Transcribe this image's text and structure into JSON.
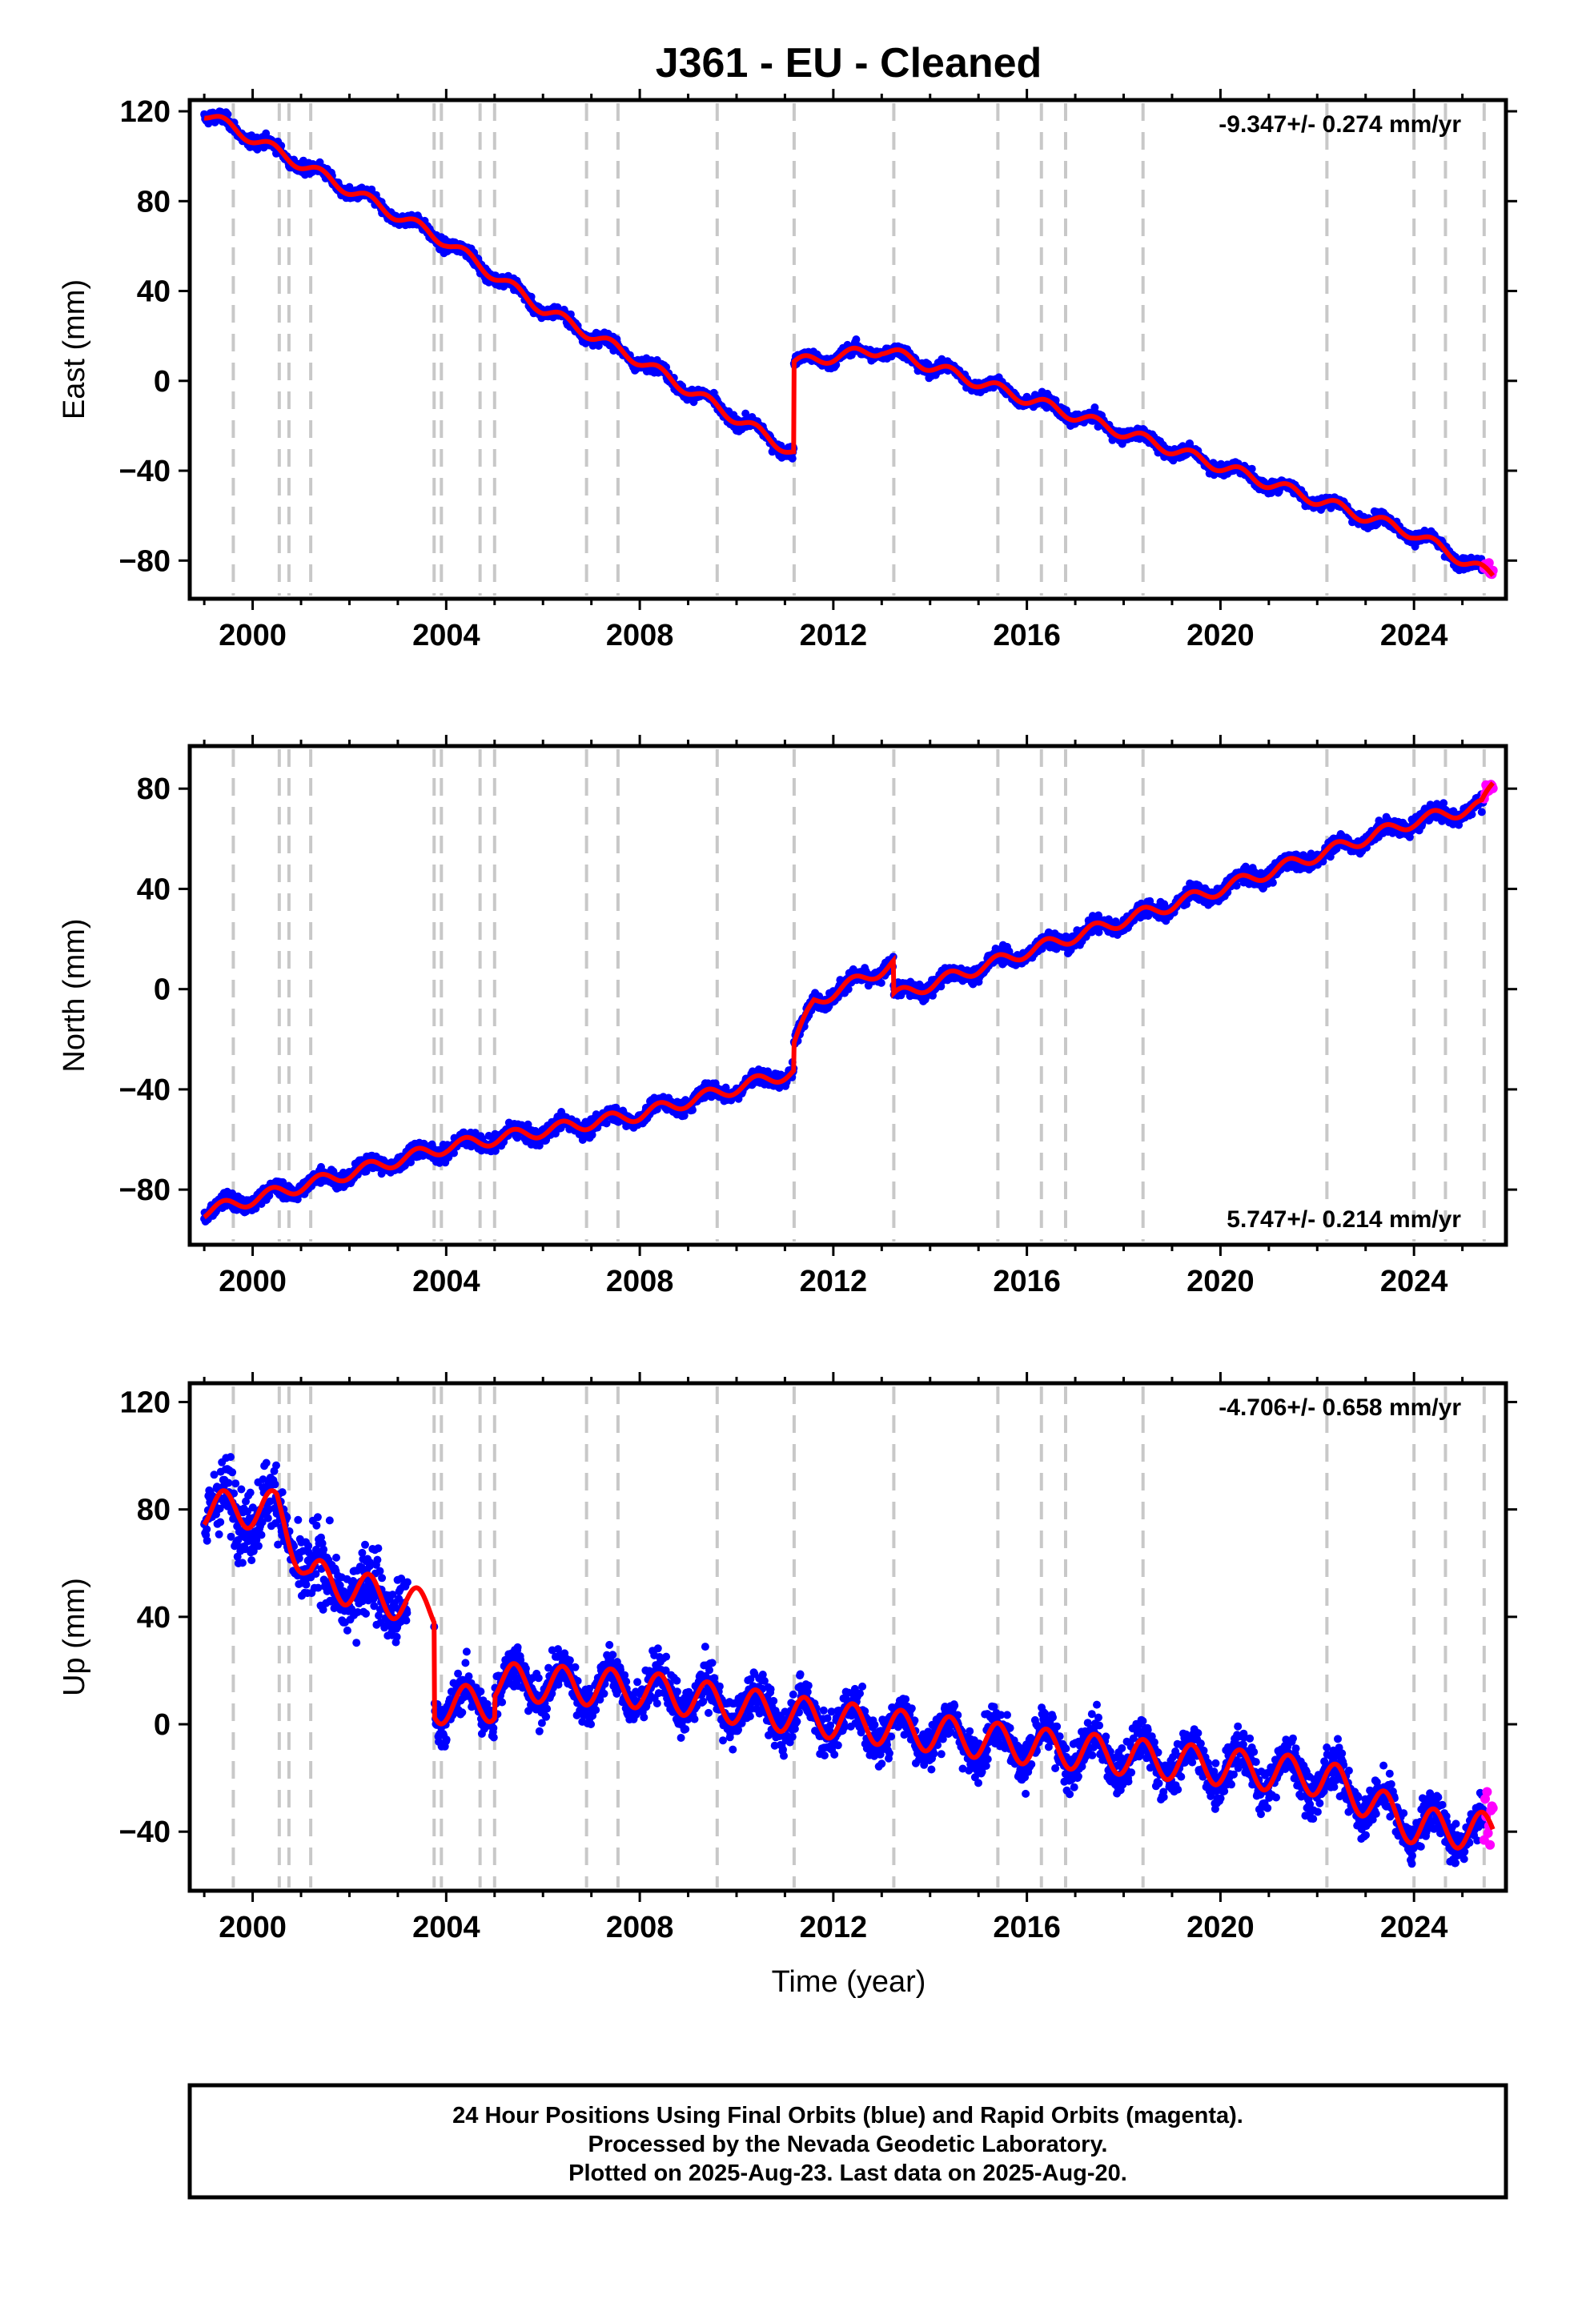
{
  "title": "J361  - EU - Cleaned",
  "x_axis_label": "Time (year)",
  "footer": {
    "line1": "24 Hour Positions Using Final Orbits (blue) and Rapid Orbits (magenta).",
    "line2": "Processed by the Nevada Geodetic Laboratory.",
    "line3": "Plotted on 2025-Aug-23. Last data on 2025-Aug-20."
  },
  "colors": {
    "final": "#0000ff",
    "rapid": "#ff00ff",
    "model": "#ff0000",
    "vlines": "#c8c8c8",
    "axes": "#000000"
  },
  "chart_data": [
    {
      "type": "scatter",
      "component": "East",
      "ylabel": "East (mm)",
      "xlim": [
        1998.7,
        2025.9
      ],
      "ylim": [
        -97,
        125
      ],
      "xticks": [
        2000,
        2004,
        2008,
        2012,
        2016,
        2020,
        2024
      ],
      "yticks": [
        120,
        80,
        40,
        0,
        -40,
        -80
      ],
      "rate_text": "-9.347+/- 0.274 mm/yr",
      "rate_position": "top-right",
      "offset_epochs": [
        1999.6,
        2000.55,
        2000.75,
        2001.2,
        2003.75,
        2003.9,
        2004.7,
        2005.0,
        2006.9,
        2007.55,
        2009.6,
        2011.19,
        2013.25,
        2015.4,
        2016.3,
        2016.8,
        2018.4,
        2022.2,
        2024.0,
        2024.65,
        2025.45
      ],
      "series": [
        {
          "name": "Final Orbits (blue)",
          "x_range": [
            1999.0,
            2025.45
          ]
        },
        {
          "name": "Rapid Orbits (magenta)",
          "x_range": [
            2025.45,
            2025.63
          ]
        }
      ],
      "model_points": [
        [
          1999.0,
          119
        ],
        [
          2000.0,
          108
        ],
        [
          2002.0,
          85
        ],
        [
          2004.0,
          62
        ],
        [
          2006.0,
          32
        ],
        [
          2008.0,
          9
        ],
        [
          2011.18,
          -32
        ],
        [
          2011.19,
          8
        ],
        [
          2013.0,
          14
        ],
        [
          2016.0,
          -8
        ],
        [
          2020.0,
          -38
        ],
        [
          2024.0,
          -68
        ],
        [
          2025.63,
          -87
        ]
      ]
    },
    {
      "type": "scatter",
      "component": "North",
      "ylabel": "North (mm)",
      "xlim": [
        1998.7,
        2025.9
      ],
      "ylim": [
        -102,
        97
      ],
      "xticks": [
        2000,
        2004,
        2008,
        2012,
        2016,
        2020,
        2024
      ],
      "yticks": [
        80,
        40,
        0,
        -40,
        -80
      ],
      "rate_text": "5.747+/- 0.214 mm/yr",
      "rate_position": "bottom-right",
      "offset_epochs": [
        1999.6,
        2000.55,
        2000.75,
        2001.2,
        2003.75,
        2003.9,
        2004.7,
        2005.0,
        2006.9,
        2007.55,
        2009.6,
        2011.19,
        2013.25,
        2015.4,
        2016.3,
        2016.8,
        2018.4,
        2022.2,
        2024.0,
        2024.65,
        2025.45
      ],
      "series": [
        {
          "name": "Final Orbits (blue)",
          "x_range": [
            1999.0,
            2025.45
          ]
        },
        {
          "name": "Rapid Orbits (magenta)",
          "x_range": [
            2025.45,
            2025.63
          ]
        }
      ],
      "model_points": [
        [
          1999.0,
          -89
        ],
        [
          2004.0,
          -63
        ],
        [
          2008.0,
          -50
        ],
        [
          2011.18,
          -33
        ],
        [
          2011.19,
          -22
        ],
        [
          2011.6,
          -5
        ],
        [
          2013.24,
          10
        ],
        [
          2013.25,
          -3
        ],
        [
          2016.0,
          15
        ],
        [
          2020.0,
          40
        ],
        [
          2024.0,
          67
        ],
        [
          2025.4,
          73
        ],
        [
          2025.63,
          82
        ]
      ]
    },
    {
      "type": "scatter",
      "component": "Up",
      "ylabel": "Up (mm)",
      "xlim": [
        1998.7,
        2025.9
      ],
      "ylim": [
        -62,
        127
      ],
      "xticks": [
        2000,
        2004,
        2008,
        2012,
        2016,
        2020,
        2024
      ],
      "yticks": [
        120,
        80,
        40,
        0,
        -40
      ],
      "rate_text": "-4.706+/- 0.658 mm/yr",
      "rate_position": "top-right",
      "offset_epochs": [
        1999.6,
        2000.55,
        2000.75,
        2001.2,
        2003.75,
        2003.9,
        2004.7,
        2005.0,
        2006.9,
        2007.55,
        2009.6,
        2011.19,
        2013.25,
        2015.4,
        2016.3,
        2016.8,
        2018.4,
        2022.2,
        2024.0,
        2024.65,
        2025.45
      ],
      "data_gap": [
        2003.2,
        2003.75
      ],
      "series": [
        {
          "name": "Final Orbits (blue)",
          "x_range": [
            1999.0,
            2025.45
          ]
        },
        {
          "name": "Rapid Orbits (magenta)",
          "x_range": [
            2025.45,
            2025.63
          ]
        }
      ],
      "model_points": [
        [
          1999.0,
          80
        ],
        [
          2000.5,
          80
        ],
        [
          2001.2,
          55
        ],
        [
          2003.75,
          42
        ],
        [
          2003.76,
          7
        ],
        [
          2005.0,
          8
        ],
        [
          2005.01,
          16
        ],
        [
          2008.0,
          13
        ],
        [
          2011.0,
          4
        ],
        [
          2016.0,
          -8
        ],
        [
          2022.2,
          -20
        ],
        [
          2023.0,
          -28
        ],
        [
          2024.0,
          -38
        ],
        [
          2025.63,
          -40
        ]
      ]
    }
  ]
}
